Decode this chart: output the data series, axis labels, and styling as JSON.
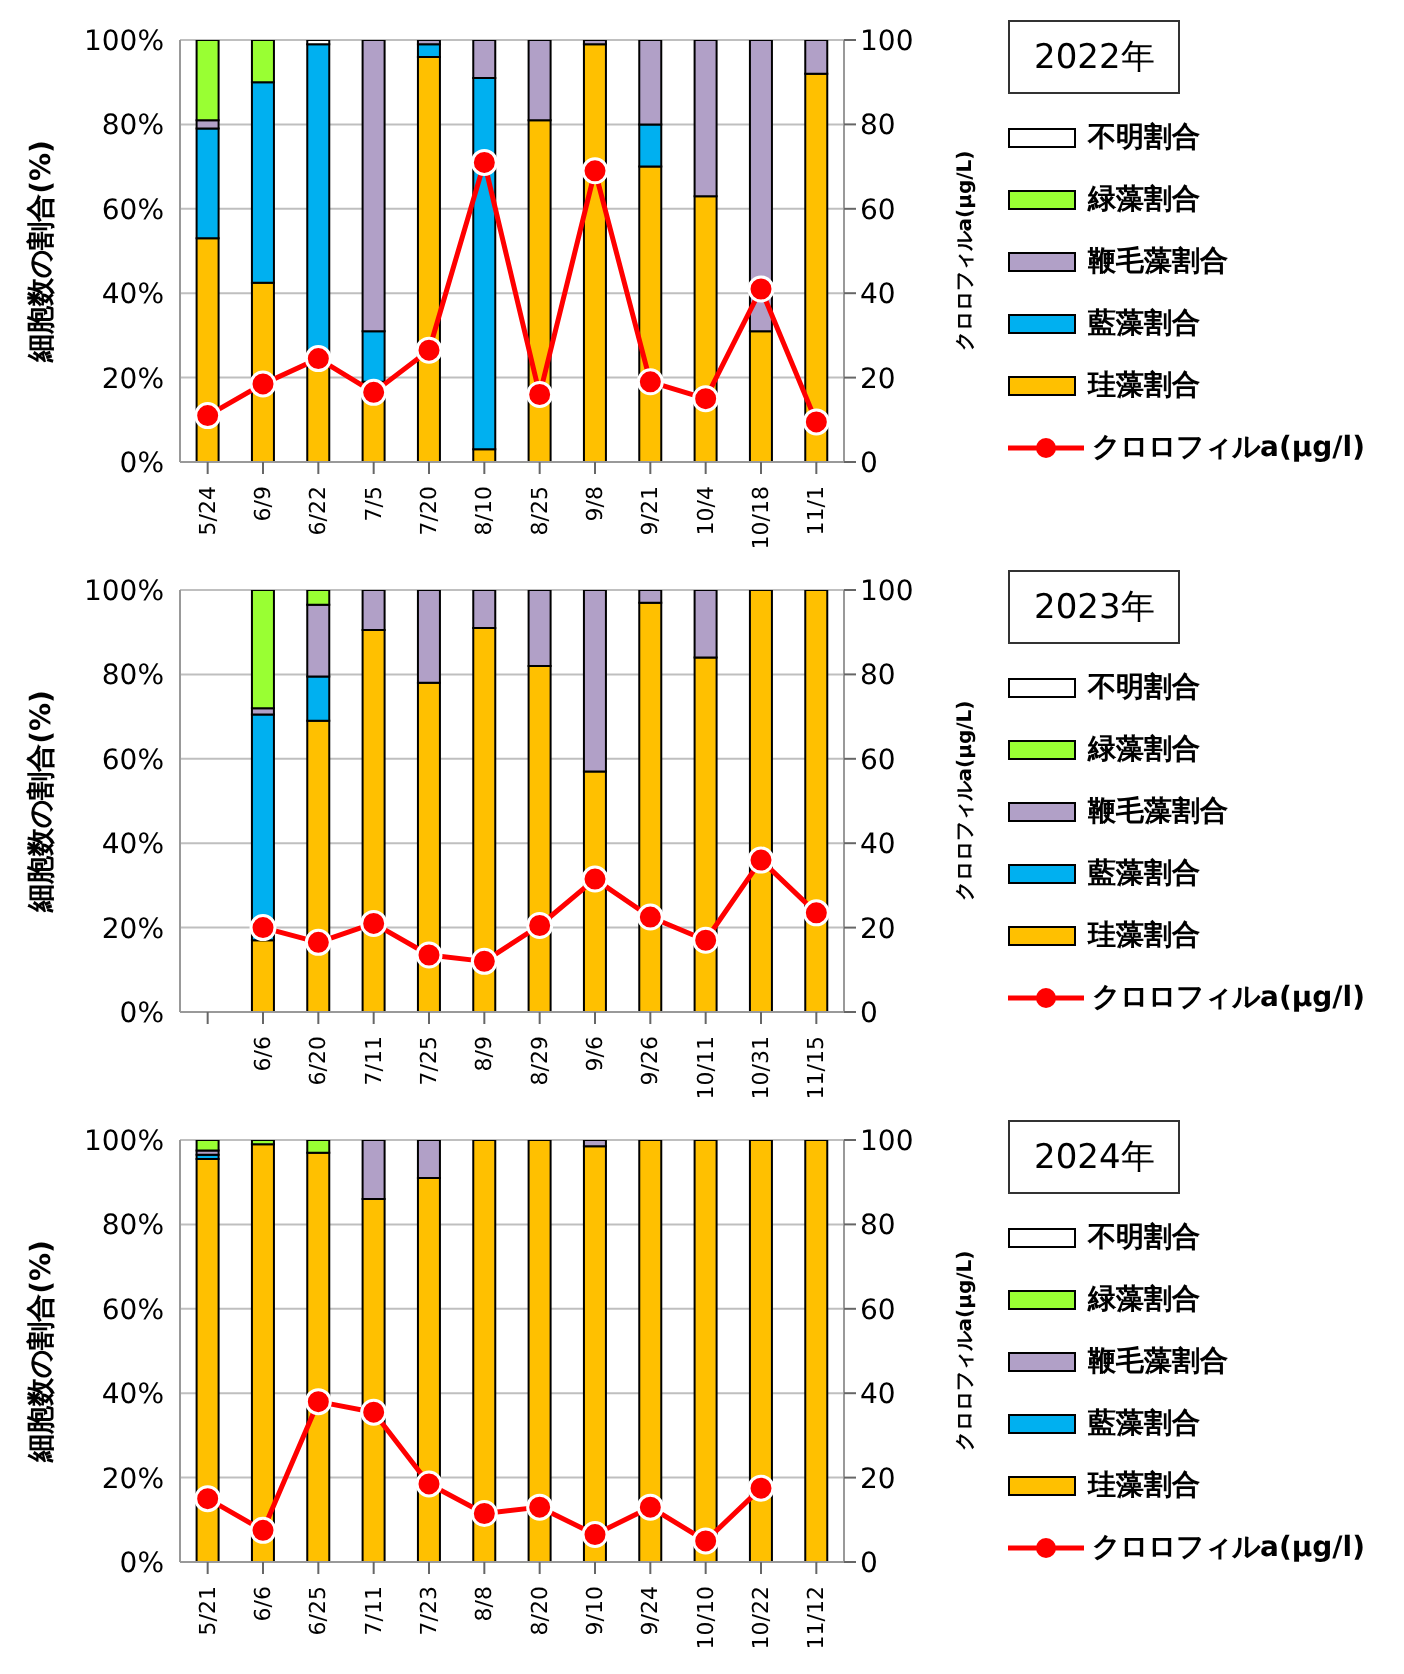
{
  "chart_data": [
    {
      "type": "bar",
      "legend_title": "2022年",
      "stacked": true,
      "ylabel": "細胞数の割合(%)",
      "y2label": "クロロフィルa(μg/L)",
      "legend": "right",
      "grid": "y",
      "marker": "circle",
      "categories": [
        "5/24",
        "6/9",
        "6/22",
        "7/5",
        "7/20",
        "8/10",
        "8/25",
        "9/8",
        "9/21",
        "10/4",
        "10/18",
        "11/1"
      ],
      "ylim": [
        0,
        100
      ],
      "yticks": [
        {
          "value": 0,
          "label": "0%"
        },
        {
          "value": 20,
          "label": "20%"
        },
        {
          "value": 40,
          "label": "40%"
        },
        {
          "value": 60,
          "label": "60%"
        },
        {
          "value": 80,
          "label": "80%"
        },
        {
          "value": 100,
          "label": "100%"
        }
      ],
      "y2lim": [
        0,
        100
      ],
      "y2ticks": [
        0,
        20,
        40,
        60,
        80,
        100
      ],
      "series": [
        {
          "name": "珪藻割合",
          "color": "#ffc000",
          "values": [
            53,
            42.5,
            24,
            19,
            96,
            3,
            81,
            99,
            70,
            63,
            31,
            92
          ]
        },
        {
          "name": "藍藻割合",
          "color": "#00b0f0",
          "values": [
            26,
            47.5,
            75,
            12,
            3,
            88,
            0,
            0,
            10,
            0,
            0,
            0
          ]
        },
        {
          "name": "鞭毛藻割合",
          "color": "#b1a0c7",
          "values": [
            2,
            0,
            0,
            69,
            1,
            9,
            19,
            1,
            20,
            37,
            69,
            8
          ]
        },
        {
          "name": "緑藻割合",
          "color": "#99ff33",
          "values": [
            19,
            10,
            0,
            0,
            0,
            0,
            0,
            0,
            0,
            0,
            0,
            0
          ]
        },
        {
          "name": "不明割合",
          "color": "#ffffff",
          "values": [
            0,
            0,
            1,
            0,
            0,
            0,
            0,
            0,
            0,
            0,
            0,
            0
          ]
        },
        {
          "name": "クロロフィルa(μg/l)",
          "type": "line",
          "axis": "y2",
          "color": "#ff0000",
          "values": [
            11,
            18.5,
            24.5,
            16.5,
            26.5,
            71,
            16,
            69,
            19,
            15,
            41,
            9.5
          ]
        }
      ]
    },
    {
      "type": "bar",
      "legend_title": "2023年",
      "stacked": true,
      "ylabel": "細胞数の割合(%)",
      "y2label": "クロロフィルa(μg/L)",
      "legend": "right",
      "grid": "y",
      "marker": "circle",
      "categories": [
        null,
        "6/6",
        "6/20",
        "7/11",
        "7/25",
        "8/9",
        "8/29",
        "9/6",
        "9/26",
        "10/11",
        "10/31",
        "11/15"
      ],
      "ylim": [
        0,
        100
      ],
      "yticks": [
        {
          "value": 0,
          "label": "0%"
        },
        {
          "value": 20,
          "label": "20%"
        },
        {
          "value": 40,
          "label": "40%"
        },
        {
          "value": 60,
          "label": "60%"
        },
        {
          "value": 80,
          "label": "80%"
        },
        {
          "value": 100,
          "label": "100%"
        }
      ],
      "y2lim": [
        0,
        100
      ],
      "y2ticks": [
        0,
        20,
        40,
        60,
        80,
        100
      ],
      "series": [
        {
          "name": "珪藻割合",
          "color": "#ffc000",
          "values": [
            null,
            17,
            69,
            90.5,
            78,
            91,
            82,
            57,
            97,
            84,
            100,
            100
          ]
        },
        {
          "name": "藍藻割合",
          "color": "#00b0f0",
          "values": [
            null,
            53.5,
            10.5,
            0,
            0,
            0,
            0,
            0,
            0,
            0,
            0,
            0
          ]
        },
        {
          "name": "鞭毛藻割合",
          "color": "#b1a0c7",
          "values": [
            null,
            1.5,
            17,
            9.5,
            22,
            9,
            18,
            43,
            3,
            16,
            0,
            0
          ]
        },
        {
          "name": "緑藻割合",
          "color": "#99ff33",
          "values": [
            null,
            28,
            3.5,
            0,
            0,
            0,
            0,
            0,
            0,
            0,
            0,
            0
          ]
        },
        {
          "name": "不明割合",
          "color": "#ffffff",
          "values": [
            null,
            0,
            0,
            0,
            0,
            0,
            0,
            0,
            0,
            0,
            0,
            0
          ]
        },
        {
          "name": "クロロフィルa(μg/l)",
          "type": "line",
          "axis": "y2",
          "color": "#ff0000",
          "values": [
            null,
            20,
            16.5,
            21,
            13.5,
            12,
            20.5,
            31.5,
            22.5,
            17,
            36,
            23.5
          ]
        }
      ]
    },
    {
      "type": "bar",
      "legend_title": "2024年",
      "stacked": true,
      "ylabel": "細胞数の割合(%)",
      "y2label": "クロロフィルa(μg/L)",
      "legend": "right",
      "grid": "y",
      "marker": "circle",
      "categories": [
        "5/21",
        "6/6",
        "6/25",
        "7/11",
        "7/23",
        "8/8",
        "8/20",
        "9/10",
        "9/24",
        "10/10",
        "10/22",
        "11/12"
      ],
      "ylim": [
        0,
        100
      ],
      "yticks": [
        {
          "value": 0,
          "label": "0%"
        },
        {
          "value": 20,
          "label": "20%"
        },
        {
          "value": 40,
          "label": "40%"
        },
        {
          "value": 60,
          "label": "60%"
        },
        {
          "value": 80,
          "label": "80%"
        },
        {
          "value": 100,
          "label": "100%"
        }
      ],
      "y2lim": [
        0,
        100
      ],
      "y2ticks": [
        0,
        20,
        40,
        60,
        80,
        100
      ],
      "series": [
        {
          "name": "珪藻割合",
          "color": "#ffc000",
          "values": [
            95.5,
            99,
            97,
            86,
            91,
            100,
            100,
            98.5,
            100,
            100,
            100,
            100
          ]
        },
        {
          "name": "藍藻割合",
          "color": "#00b0f0",
          "values": [
            1,
            0,
            0,
            0,
            0,
            0,
            0,
            0,
            0,
            0,
            0,
            0
          ]
        },
        {
          "name": "鞭毛藻割合",
          "color": "#b1a0c7",
          "values": [
            1,
            0,
            0,
            14,
            9,
            0,
            0,
            1.5,
            0,
            0,
            0,
            0
          ]
        },
        {
          "name": "緑藻割合",
          "color": "#99ff33",
          "values": [
            2.5,
            1,
            3,
            0,
            0,
            0,
            0,
            0,
            0,
            0,
            0,
            0
          ]
        },
        {
          "name": "不明割合",
          "color": "#ffffff",
          "values": [
            0,
            0,
            0,
            0,
            0,
            0,
            0,
            0,
            0,
            0,
            0,
            0
          ]
        },
        {
          "name": "クロロフィルa(μg/l)",
          "type": "line",
          "axis": "y2",
          "color": "#ff0000",
          "values": [
            15,
            7.5,
            38,
            35.5,
            18.5,
            11.5,
            13,
            6.5,
            13,
            5,
            17.5,
            null
          ]
        }
      ]
    }
  ]
}
